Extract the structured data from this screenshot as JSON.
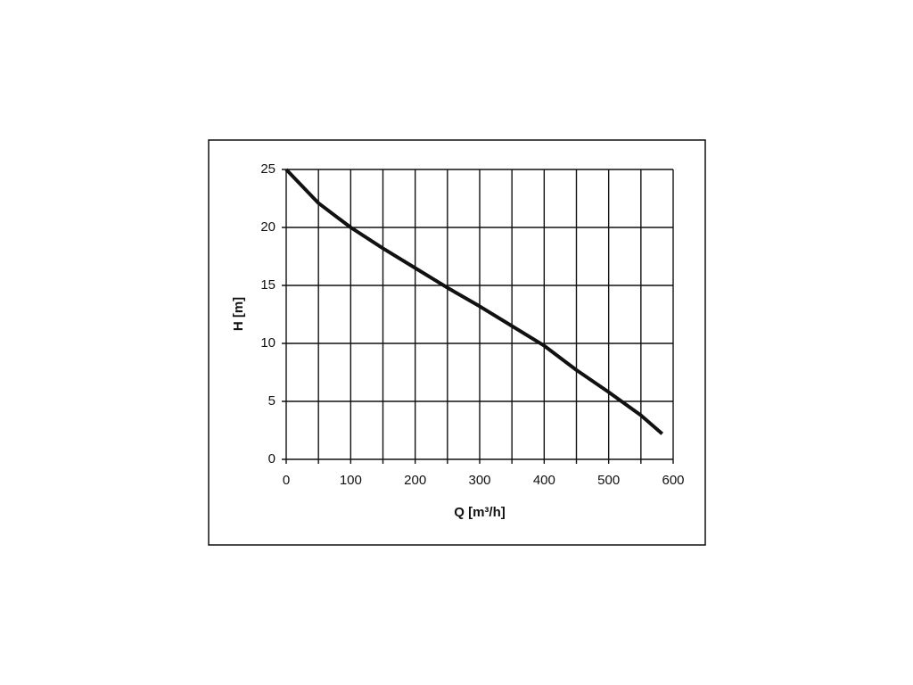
{
  "chart_data": {
    "type": "line",
    "x_label": "Q [m³/h]",
    "y_label": "H [m]",
    "x": [
      0,
      50,
      100,
      150,
      200,
      250,
      300,
      350,
      400,
      450,
      500,
      550,
      583
    ],
    "series": [
      {
        "color": "#111111",
        "values": [
          25,
          22.1,
          20,
          18.2,
          16.5,
          14.8,
          13.2,
          11.5,
          9.8,
          7.7,
          5.8,
          3.8,
          2.2
        ]
      }
    ],
    "xlim": [
      0,
      600
    ],
    "ylim": [
      0,
      25
    ],
    "xticks": [
      0,
      100,
      200,
      300,
      400,
      500,
      600
    ],
    "x_minor_gridlines": [
      50,
      150,
      250,
      350,
      450,
      550
    ],
    "yticks": [
      0,
      5,
      10,
      15,
      20,
      25
    ],
    "grid": true
  }
}
